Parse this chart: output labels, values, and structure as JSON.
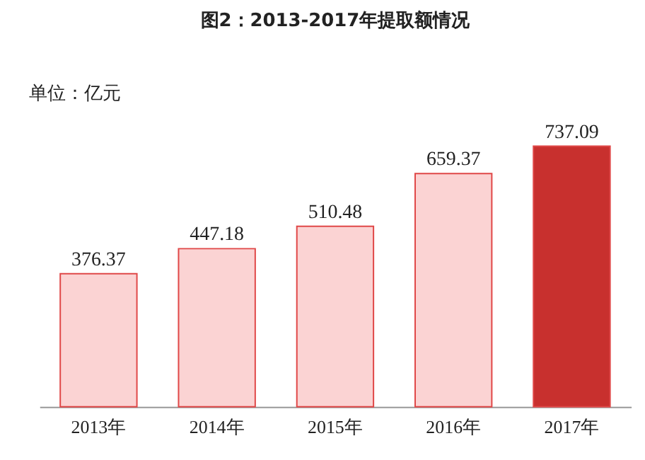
{
  "chart_data": {
    "type": "bar",
    "title": "图2：2013-2017年提取额情况",
    "ylabel": "单位：亿元",
    "categories": [
      "2013年",
      "2014年",
      "2015年",
      "2016年",
      "2017年"
    ],
    "values": [
      376.37,
      447.18,
      510.48,
      659.37,
      737.09
    ],
    "colors": [
      "#fbd3d3",
      "#fbd3d3",
      "#fbd3d3",
      "#fbd3d3",
      "#c8302e"
    ],
    "data_labels": true,
    "grid": false
  }
}
